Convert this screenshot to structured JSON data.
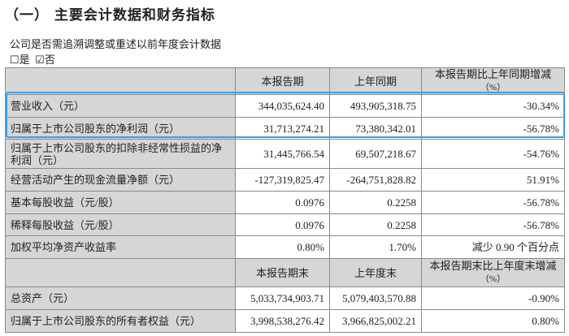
{
  "section_title": "（一） 主要会计数据和财务指标",
  "question": "公司是否需追溯调整或重述以前年度会计数据",
  "options": [
    {
      "label": "是",
      "checked": false
    },
    {
      "label": "否",
      "checked": true
    }
  ],
  "table1": {
    "headers": [
      "",
      "本报告期",
      "上年同期",
      "本报告期比上年同期增减",
      "（%）"
    ],
    "rows": [
      [
        "营业收入（元）",
        "344,035,624.40",
        "493,905,318.75",
        "-30.34%"
      ],
      [
        "归属于上市公司股东的净利润（元）",
        "31,713,274.21",
        "73,380,342.01",
        "-56.78%"
      ],
      [
        "归属于上市公司股东的扣除非经常性损益的净利润（元）",
        "31,445,766.54",
        "69,507,218.67",
        "-54.76%"
      ],
      [
        "经营活动产生的现金流量净额（元）",
        "-127,319,825.47",
        "-264,751,828.82",
        "51.91%"
      ],
      [
        "基本每股收益（元/股）",
        "0.0976",
        "0.2258",
        "-56.78%"
      ],
      [
        "稀释每股收益（元/股）",
        "0.0976",
        "0.2258",
        "-56.78%"
      ],
      [
        "加权平均净资产收益率",
        "0.80%",
        "1.70%",
        "减少 0.90 个百分点"
      ]
    ]
  },
  "table2": {
    "headers": [
      "",
      "本报告期末",
      "上年度末",
      "本报告期末比上年度末增减",
      "（%）"
    ],
    "rows": [
      [
        "总资产（元）",
        "5,033,734,903.71",
        "5,079,403,570.88",
        "-0.90%"
      ],
      [
        "归属于上市公司股东的所有者权益（元）",
        "3,998,538,276.42",
        "3,966,825,002.21",
        "0.80%"
      ]
    ]
  },
  "highlight_color": "#3d9fe6"
}
